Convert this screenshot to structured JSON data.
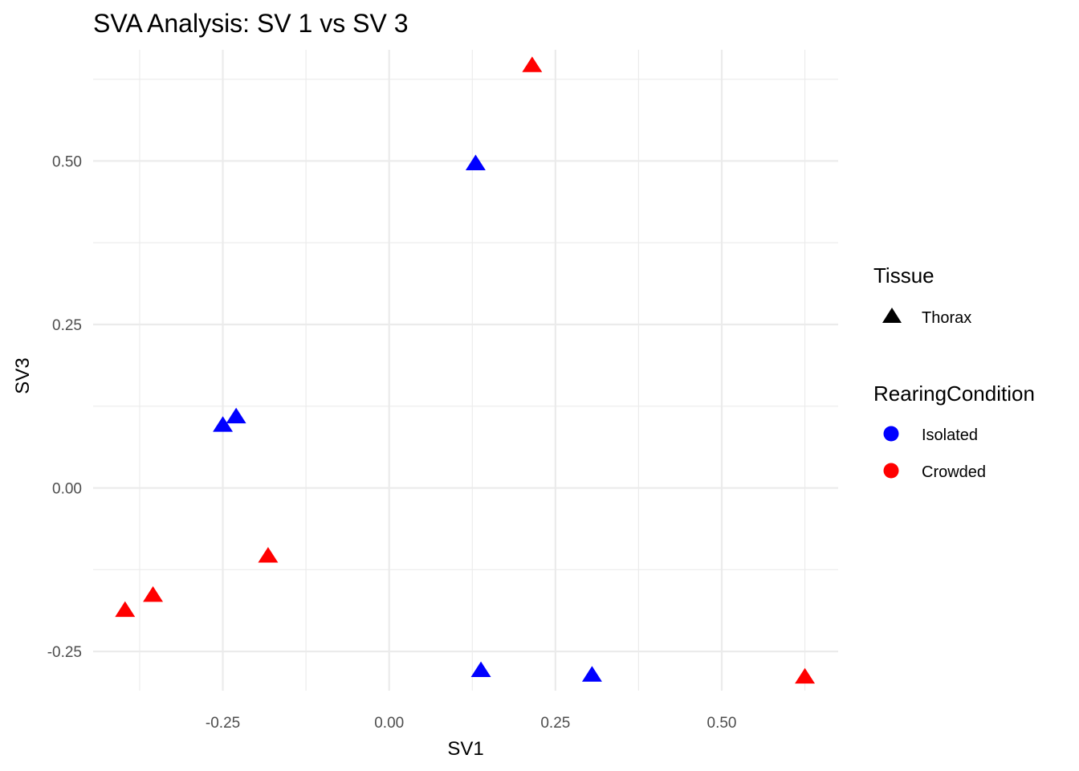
{
  "chart_data": {
    "type": "scatter",
    "title": "SVA Analysis: SV 1  vs SV 3",
    "xlabel": "SV1",
    "ylabel": "SV3",
    "xlim": [
      -0.445,
      0.675
    ],
    "ylim": [
      -0.31,
      0.67
    ],
    "x_ticks": [
      -0.25,
      0.0,
      0.25,
      0.5
    ],
    "x_tick_labels": [
      "-0.25",
      "0.00",
      "0.25",
      "0.50"
    ],
    "y_ticks": [
      -0.25,
      0.0,
      0.25,
      0.5
    ],
    "y_tick_labels": [
      "-0.25",
      "0.00",
      "0.25",
      "0.50"
    ],
    "grid": true,
    "legend_position": "right",
    "legend": {
      "shape_title": "Tissue",
      "shape_items": [
        {
          "label": "Thorax",
          "shape": "triangle",
          "color": "#000000"
        }
      ],
      "color_title": "RearingCondition",
      "color_items": [
        {
          "label": "Isolated",
          "color": "#0000ff"
        },
        {
          "label": "Crowded",
          "color": "#ff0000"
        }
      ]
    },
    "points": [
      {
        "x": 0.215,
        "y": 0.645,
        "group": "Crowded"
      },
      {
        "x": 0.13,
        "y": 0.495,
        "group": "Isolated"
      },
      {
        "x": -0.23,
        "y": 0.108,
        "group": "Isolated"
      },
      {
        "x": -0.25,
        "y": 0.095,
        "group": "Isolated"
      },
      {
        "x": -0.182,
        "y": -0.105,
        "group": "Crowded"
      },
      {
        "x": -0.355,
        "y": -0.165,
        "group": "Crowded"
      },
      {
        "x": -0.397,
        "y": -0.188,
        "group": "Crowded"
      },
      {
        "x": 0.138,
        "y": -0.28,
        "group": "Isolated"
      },
      {
        "x": 0.305,
        "y": -0.287,
        "group": "Isolated"
      },
      {
        "x": 0.625,
        "y": -0.29,
        "group": "Crowded"
      }
    ]
  }
}
